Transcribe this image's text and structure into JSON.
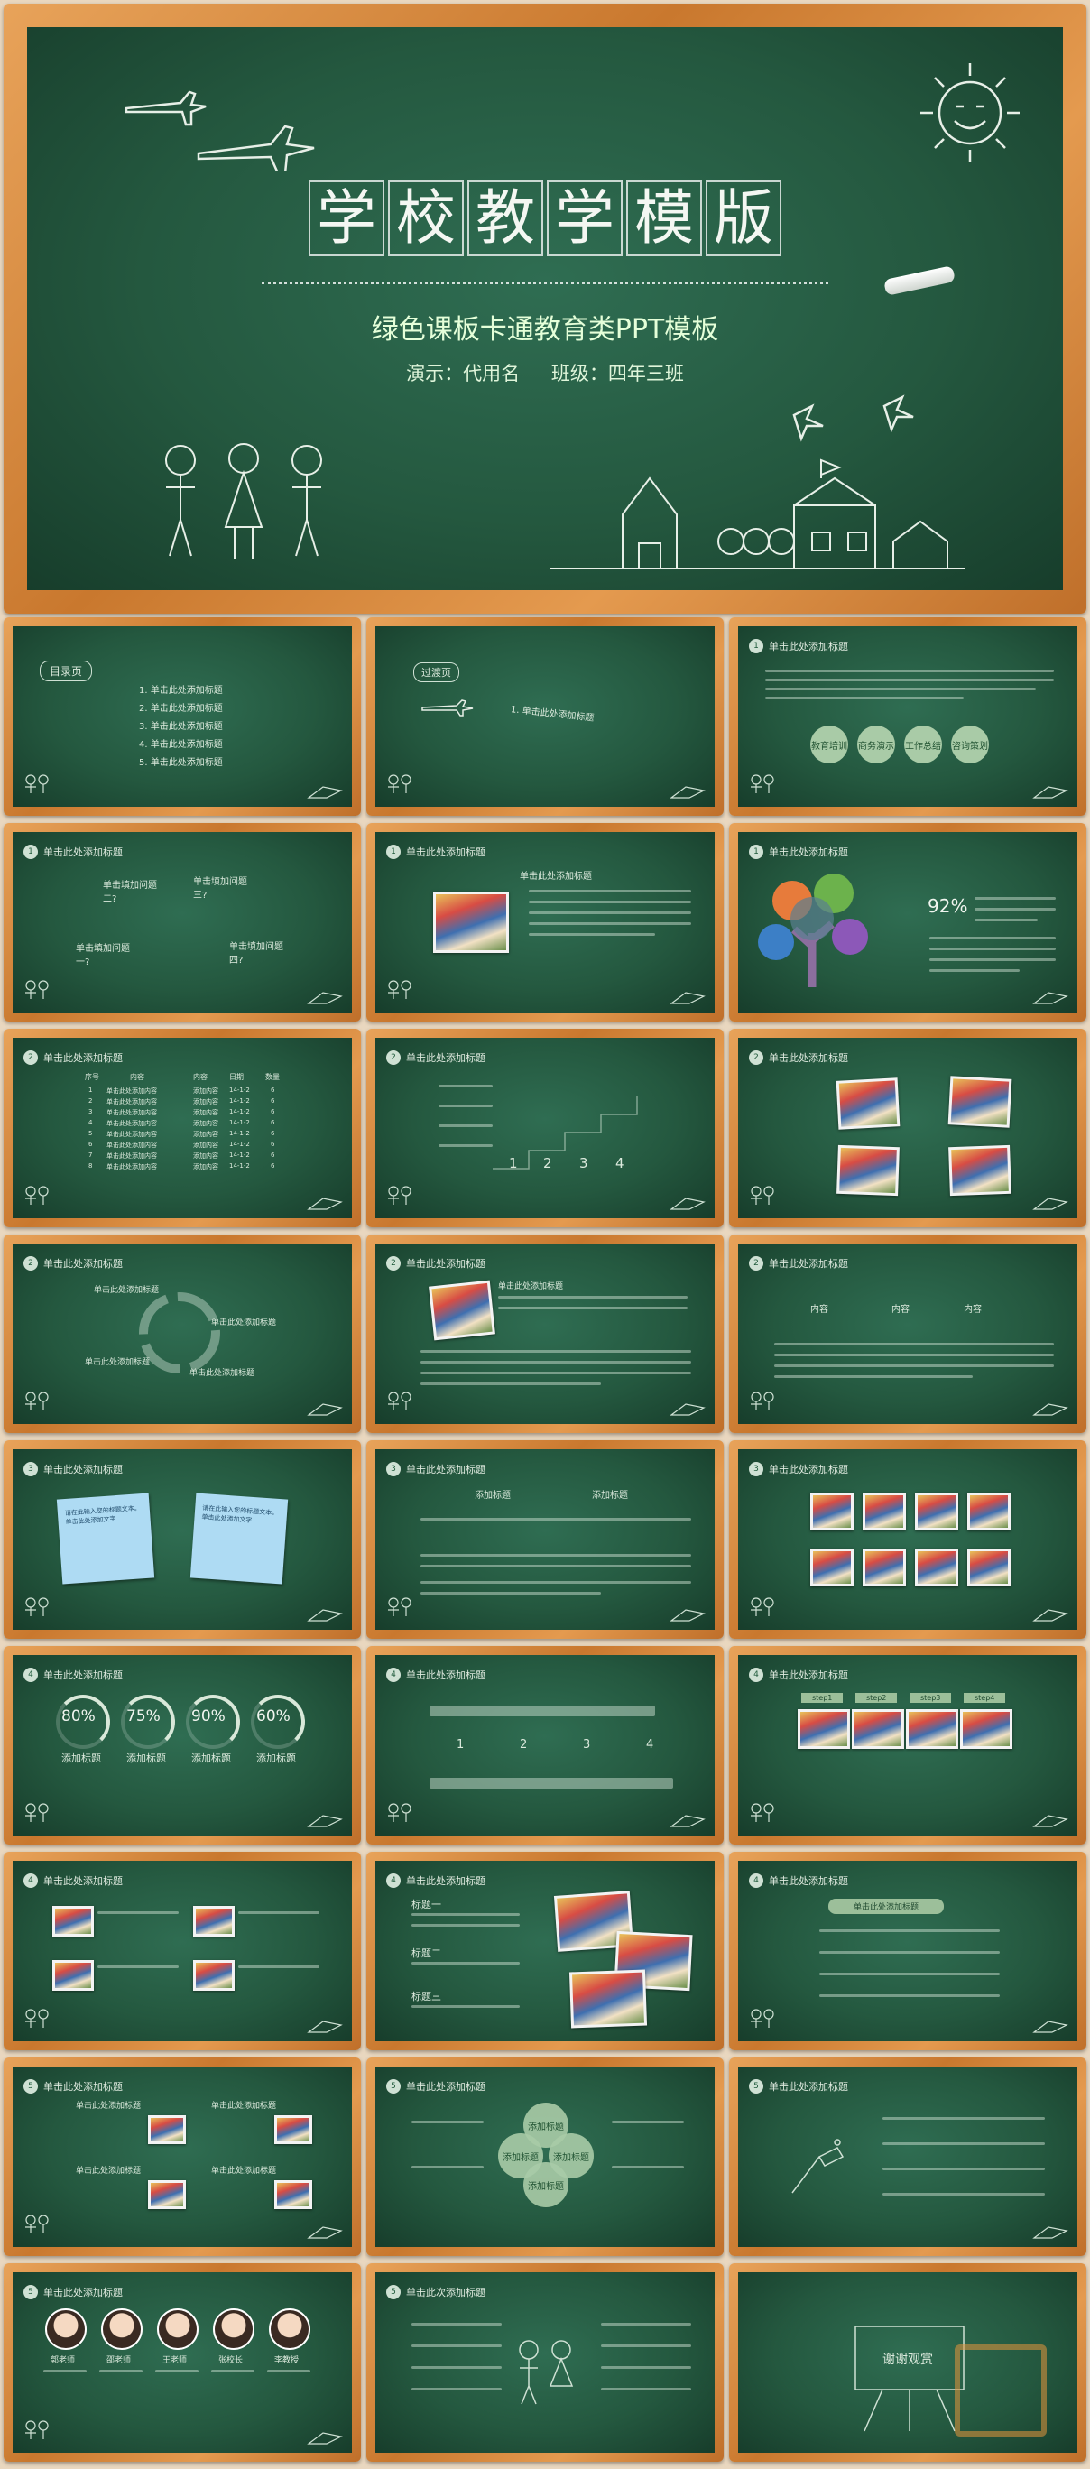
{
  "hero": {
    "title_chars": [
      "学",
      "校",
      "教",
      "学",
      "模",
      "版"
    ],
    "subtitle": "绿色课板卡通教育类PPT模板",
    "presenter": "演示：代用名",
    "class_label": "班级：四年三班"
  },
  "common": {
    "slide_heading": "单击此处添加标题"
  },
  "toc": {
    "label": "目录页",
    "items": [
      "1.  单击此处添加标题",
      "2.  单击此处添加标题",
      "3.  单击此处添加标题",
      "4.  单击此处添加标题",
      "5.  单击此处添加标题"
    ]
  },
  "transition": {
    "label": "过渡页",
    "item": "1.  单击此处添加标题"
  },
  "circles": [
    "教育培训",
    "商务演示",
    "工作总结",
    "咨询策划"
  ],
  "questions": [
    "单击填加问题二?",
    "单击填加问题三?",
    "单击填加问题一?",
    "单击填加问题四?"
  ],
  "tree": {
    "percent": "92%"
  },
  "table": {
    "headers": [
      "序号",
      "内容",
      "内容",
      "日期",
      "数量"
    ],
    "row_label": "单击此处添加内容",
    "col_content": "添加内容",
    "col_date": "14-1-2",
    "col_qty": "6"
  },
  "steps_numbers": [
    "1",
    "2",
    "3",
    "4"
  ],
  "cycle": [
    "单击此处添加标题",
    "单击此处添加标题",
    "单击此处添加标题",
    "单击此处添加标题"
  ],
  "three_content": [
    "内容",
    "内容",
    "内容"
  ],
  "notes": [
    "请在此输入您的标题文本。单击此处添加文字",
    "请在此输入您的标题文本。单击此处添加文字"
  ],
  "two_headings": [
    "添加标题",
    "添加标题"
  ],
  "percents": [
    "80%",
    "75%",
    "90%",
    "60%"
  ],
  "add_title": "添加标题",
  "four_nums": [
    "1",
    "2",
    "3",
    "4"
  ],
  "step_labels": [
    "step1",
    "step2",
    "step3",
    "step4"
  ],
  "titles_123": [
    "标题一",
    "标题二",
    "标题三"
  ],
  "teachers": [
    "郭老师",
    "邵老师",
    "王老师",
    "张校长",
    "李教授"
  ],
  "thanks": "谢谢观赏",
  "next_heading": "单击此次添加标题"
}
